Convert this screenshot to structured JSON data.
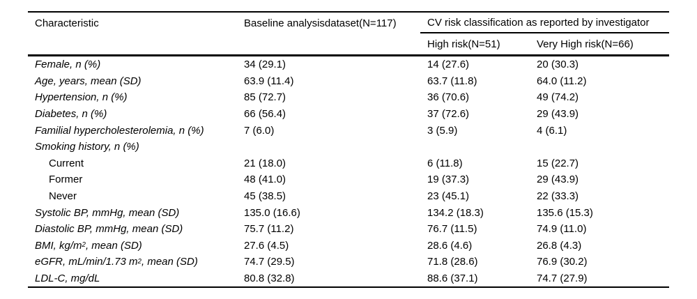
{
  "table": {
    "header": {
      "characteristic": "Characteristic",
      "baseline": "Baseline analysisdataset(N=117)",
      "cv_group": "CV risk classification as reported by investigator",
      "high_risk": "High risk(N=51)",
      "very_high_risk": "Very High risk(N=66)"
    },
    "rows": [
      {
        "label": "Female, n (%)",
        "baseline": "34 (29.1)",
        "high": "14 (27.6)",
        "very_high": "20 (30.3)"
      },
      {
        "label": "Age, years, mean (SD)",
        "baseline": "63.9 (11.4)",
        "high": "63.7 (11.8)",
        "very_high": "64.0 (11.2)"
      },
      {
        "label": "Hypertension, n (%)",
        "baseline": "85 (72.7)",
        "high": "36 (70.6)",
        "very_high": "49 (74.2)"
      },
      {
        "label": "Diabetes, n (%)",
        "baseline": "66 (56.4)",
        "high": "37 (72.6)",
        "very_high": "29 (43.9)"
      },
      {
        "label": "Familial hypercholesterolemia, n (%)",
        "baseline": "7 (6.0)",
        "high": "3 (5.9)",
        "very_high": "4 (6.1)"
      },
      {
        "label": "Smoking history, n (%)",
        "baseline": "",
        "high": "",
        "very_high": ""
      },
      {
        "label": "Current",
        "baseline": "21 (18.0)",
        "high": "6 (11.8)",
        "very_high": "15 (22.7)"
      },
      {
        "label": "Former",
        "baseline": "48 (41.0)",
        "high": "19 (37.3)",
        "very_high": "29 (43.9)"
      },
      {
        "label": "Never",
        "baseline": "45 (38.5)",
        "high": "23 (45.1)",
        "very_high": "22 (33.3)"
      },
      {
        "label": "Systolic BP, mmHg, mean (SD)",
        "baseline": "135.0 (16.6)",
        "high": "134.2 (18.3)",
        "very_high": "135.6 (15.3)"
      },
      {
        "label": "Diastolic BP, mmHg, mean (SD)",
        "baseline": "75.7 (11.2)",
        "high": "76.7 (11.5)",
        "very_high": "74.9 (11.0)"
      },
      {
        "label_pre": "BMI, kg/m",
        "label_sup": "2",
        "label_post": ", mean (SD)",
        "baseline": "27.6 (4.5)",
        "high": "28.6 (4.6)",
        "very_high": "26.8 (4.3)"
      },
      {
        "label_pre": "eGFR, mL/min/1.73 m",
        "label_sup": "2",
        "label_post": ", mean (SD)",
        "baseline": "74.7 (29.5)",
        "high": "71.8 (28.6)",
        "very_high": "76.9 (30.2)"
      },
      {
        "label": "LDL-C, mg/dL",
        "baseline": "80.8 (32.8)",
        "high": "88.6 (37.1)",
        "very_high": "74.7 (27.9)"
      }
    ]
  }
}
